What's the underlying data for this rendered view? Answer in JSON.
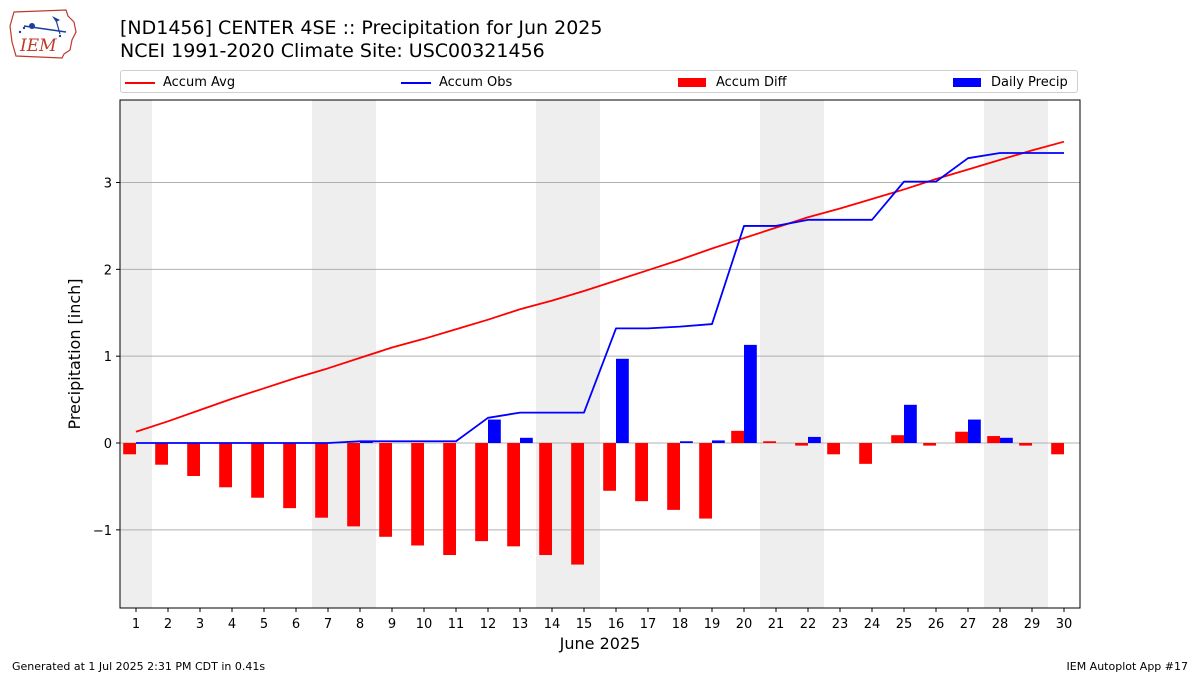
{
  "logo": {
    "text": "IEM",
    "icon": "iem-iowa-logo-icon"
  },
  "title_line1": "[ND1456] CENTER 4SE :: Precipitation for Jun 2025",
  "title_line2": "NCEI 1991-2020 Climate Site: USC00321456",
  "footer": {
    "left": "Generated at 1 Jul 2025 2:31 PM CDT in 0.41s",
    "right": "IEM Autoplot App #17"
  },
  "chart_data": {
    "type": "bar",
    "xlabel": "June 2025",
    "ylabel": "Precipitation [inch]",
    "days": [
      1,
      2,
      3,
      4,
      5,
      6,
      7,
      8,
      9,
      10,
      11,
      12,
      13,
      14,
      15,
      16,
      17,
      18,
      19,
      20,
      21,
      22,
      23,
      24,
      25,
      26,
      27,
      28,
      29,
      30
    ],
    "x_tick_labels": [
      "1",
      "2",
      "3",
      "4",
      "5",
      "6",
      "7",
      "8",
      "9",
      "10",
      "11",
      "12",
      "13",
      "14",
      "15",
      "16",
      "17",
      "18",
      "19",
      "20",
      "21",
      "22",
      "23",
      "24",
      "25",
      "26",
      "27",
      "28",
      "29",
      "30"
    ],
    "ylim": [
      -1.9,
      3.95
    ],
    "y_ticks": [
      -1,
      0,
      1,
      2,
      3
    ],
    "y_tick_labels": [
      "−1",
      "0",
      "1",
      "2",
      "3"
    ],
    "weekend_shading": [
      [
        1,
        1
      ],
      [
        7,
        8
      ],
      [
        14,
        15
      ],
      [
        21,
        22
      ],
      [
        28,
        29
      ]
    ],
    "grid": "horizontal",
    "legend_placement": "top, above plot",
    "colors": {
      "accum_avg": "#ff0000",
      "accum_obs": "#0000ff",
      "accum_diff": "#ff0000",
      "daily_precip": "#0000ff",
      "weekend": "#eeeeee",
      "grid": "#b0b0b0"
    },
    "series": [
      {
        "name": "Accum Avg",
        "kind": "line",
        "values": [
          0.13,
          0.25,
          0.38,
          0.51,
          0.63,
          0.75,
          0.86,
          0.98,
          1.1,
          1.2,
          1.31,
          1.42,
          1.54,
          1.64,
          1.75,
          1.87,
          1.99,
          2.11,
          2.24,
          2.36,
          2.48,
          2.6,
          2.7,
          2.81,
          2.92,
          3.04,
          3.15,
          3.26,
          3.37,
          3.47
        ]
      },
      {
        "name": "Accum Obs",
        "kind": "line",
        "values": [
          0,
          0,
          0,
          0,
          0,
          0,
          0,
          0.02,
          0.02,
          0.02,
          0.02,
          0.29,
          0.35,
          0.35,
          0.35,
          1.32,
          1.32,
          1.34,
          1.37,
          2.5,
          2.5,
          2.57,
          2.57,
          2.57,
          3.01,
          3.01,
          3.28,
          3.34,
          3.34,
          3.34
        ]
      },
      {
        "name": "Accum Diff",
        "kind": "bar",
        "values": [
          -0.13,
          -0.25,
          -0.38,
          -0.51,
          -0.63,
          -0.75,
          -0.86,
          -0.96,
          -1.08,
          -1.18,
          -1.29,
          -1.13,
          -1.19,
          -1.29,
          -1.4,
          -0.55,
          -0.67,
          -0.77,
          -0.87,
          0.14,
          0.02,
          -0.03,
          -0.13,
          -0.24,
          0.09,
          -0.03,
          0.13,
          0.08,
          -0.03,
          -0.13
        ]
      },
      {
        "name": "Daily Precip",
        "kind": "bar",
        "values": [
          0,
          0,
          0,
          0,
          0,
          0,
          0,
          0.02,
          0,
          0,
          0,
          0.27,
          0.06,
          0,
          0,
          0.97,
          0,
          0.02,
          0.03,
          1.13,
          0,
          0.07,
          0,
          0,
          0.44,
          0,
          0.27,
          0.06,
          0,
          0
        ]
      }
    ]
  }
}
